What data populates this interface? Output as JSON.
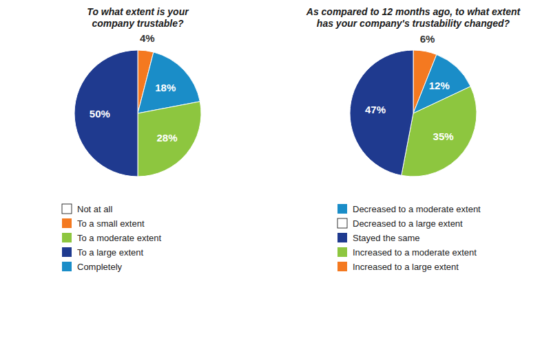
{
  "chart_data": [
    {
      "type": "pie",
      "title": "To what extent is your\ncompany trustable?",
      "values": [
        4,
        18,
        28,
        50
      ],
      "value_labels": [
        "4%",
        "18%",
        "28%",
        "50%"
      ],
      "colors": [
        "#f47920",
        "#1a8dc8",
        "#8dc63f",
        "#1f3a8f"
      ],
      "data_labels": true,
      "legend": "bottom",
      "legend_items": [
        {
          "label": "Not at all",
          "color": "#ffffff"
        },
        {
          "label": "To a small extent",
          "color": "#f47920"
        },
        {
          "label": "To a moderate extent",
          "color": "#8dc63f"
        },
        {
          "label": "To a large extent",
          "color": "#1f3a8f"
        },
        {
          "label": "Completely",
          "color": "#1a8dc8"
        }
      ]
    },
    {
      "type": "pie",
      "title": "As compared to 12 months ago, to what extent\nhas your company's trustability changed?",
      "values": [
        6,
        12,
        35,
        47
      ],
      "value_labels": [
        "6%",
        "12%",
        "35%",
        "47%"
      ],
      "colors": [
        "#f47920",
        "#1a8dc8",
        "#8dc63f",
        "#1f3a8f"
      ],
      "data_labels": true,
      "legend": "bottom",
      "legend_items": [
        {
          "label": "Decreased to a moderate extent",
          "color": "#1a8dc8"
        },
        {
          "label": "Decreased to a large extent",
          "color": "#ffffff"
        },
        {
          "label": "Stayed the same",
          "color": "#1f3a8f"
        },
        {
          "label": "Increased to a moderate extent",
          "color": "#8dc63f"
        },
        {
          "label": "Increased to a large extent",
          "color": "#f47920"
        }
      ]
    }
  ]
}
